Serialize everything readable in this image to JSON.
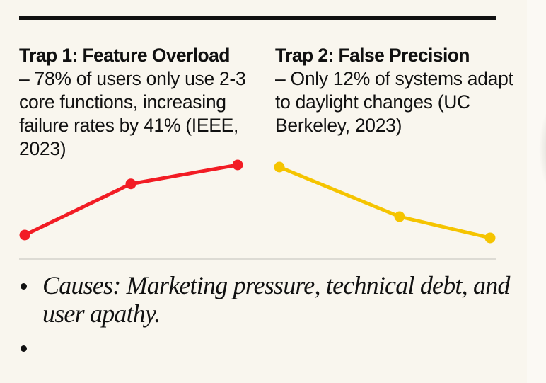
{
  "trap1": {
    "title": "Trap 1: Feature Overload",
    "body": "– 78% of users only use 2-3 core functions, increasing failure rates by 41% (IEEE, 2023)",
    "color": "#f21c24",
    "trend": [
      0,
      0.73,
      1
    ]
  },
  "trap2": {
    "title": "Trap 2: False Precision",
    "body": "– Only 12% of systems adapt to daylight changes (UC Berkeley, 2023)",
    "color": "#f5c400",
    "trend": [
      1,
      0.3,
      0
    ]
  },
  "bullets": [
    "Causes: Marketing pressure, technical debt, and user apathy.",
    ""
  ]
}
